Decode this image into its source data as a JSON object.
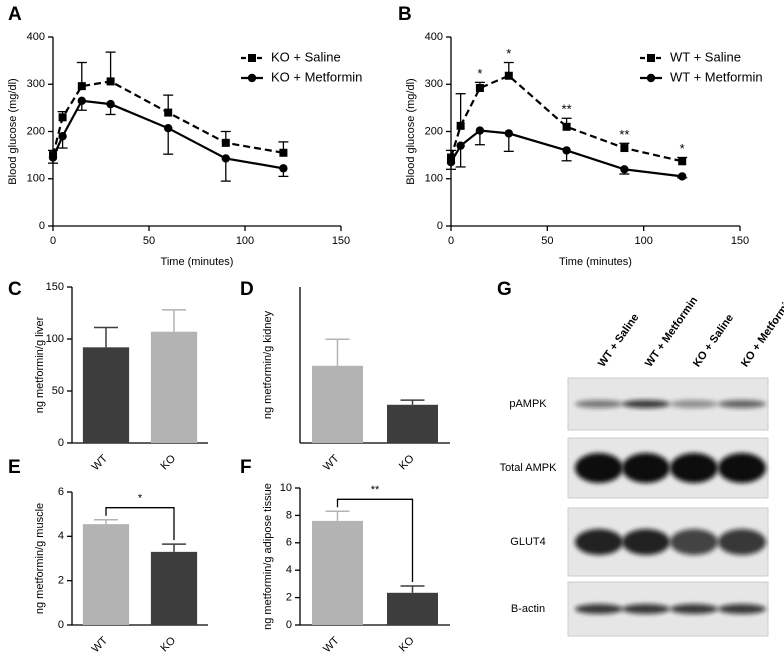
{
  "chart_data": [
    {
      "type": "line",
      "panel_label": "A",
      "x_label": "Time (minutes)",
      "y_label": "Blood glucose (mg/dl)",
      "x": [
        0,
        5,
        15,
        30,
        60,
        90,
        120
      ],
      "xlim": [
        0,
        150
      ],
      "xticks": [
        0,
        50,
        100,
        150
      ],
      "ylim": [
        0,
        400
      ],
      "yticks": [
        0,
        100,
        200,
        300,
        400
      ],
      "legend": "top-right",
      "series": [
        {
          "name": "KO + Saline",
          "color": "#000000",
          "dash": true,
          "marker": "square",
          "error_direction": "up",
          "values": [
            150,
            230,
            296,
            306,
            240,
            176,
            155
          ],
          "errors": [
            10,
            12,
            50,
            62,
            37,
            24,
            23
          ]
        },
        {
          "name": "KO + Metformin",
          "color": "#000000",
          "dash": false,
          "marker": "circle",
          "error_direction": "down",
          "values": [
            145,
            190,
            265,
            258,
            207,
            143,
            122
          ],
          "errors": [
            12,
            25,
            20,
            22,
            55,
            48,
            17
          ]
        }
      ]
    },
    {
      "type": "line",
      "panel_label": "B",
      "x_label": "Time (minutes)",
      "y_label": "Blood glucose (mg/dl)",
      "x": [
        0,
        5,
        15,
        30,
        60,
        90,
        120
      ],
      "xlim": [
        0,
        150
      ],
      "xticks": [
        0,
        50,
        100,
        150
      ],
      "ylim": [
        0,
        400
      ],
      "yticks": [
        0,
        100,
        200,
        300,
        400
      ],
      "legend": "top-right",
      "series": [
        {
          "name": "WT + Saline",
          "color": "#000000",
          "dash": true,
          "marker": "square",
          "error_direction": "up",
          "values": [
            145,
            212,
            292,
            318,
            210,
            165,
            137
          ],
          "errors": [
            15,
            68,
            12,
            28,
            18,
            10,
            8
          ]
        },
        {
          "name": "WT + Metformin",
          "color": "#000000",
          "dash": false,
          "marker": "circle",
          "error_direction": "down",
          "values": [
            135,
            170,
            202,
            196,
            160,
            120,
            105
          ],
          "errors": [
            15,
            45,
            30,
            38,
            22,
            10,
            3
          ]
        }
      ],
      "annotations": [
        {
          "x": 15,
          "text": "*"
        },
        {
          "x": 30,
          "text": "*"
        },
        {
          "x": 60,
          "text": "**"
        },
        {
          "x": 90,
          "text": "**"
        },
        {
          "x": 120,
          "text": "*"
        }
      ]
    },
    {
      "type": "bar",
      "panel_label": "C",
      "y_label": "ng metformin/g liver",
      "categories": [
        "WT",
        "KO"
      ],
      "values": [
        92,
        107
      ],
      "errors": [
        19,
        21
      ],
      "colors": [
        "#3d3d3d",
        "#b3b3b3"
      ],
      "ylim": [
        0,
        150
      ],
      "yticks": [
        0,
        50,
        100,
        150
      ]
    },
    {
      "type": "bar",
      "panel_label": "D",
      "y_label": "ng metformin/g kidney",
      "categories": [
        "WT",
        "KO"
      ],
      "values": [
        99,
        49
      ],
      "errors": [
        34,
        6
      ],
      "colors": [
        "#b3b3b3",
        "#3d3d3d"
      ],
      "ylim": [
        0,
        200
      ]
    },
    {
      "type": "bar",
      "panel_label": "E",
      "y_label": "ng metformin/g muscle",
      "categories": [
        "WT",
        "KO"
      ],
      "values": [
        4.55,
        3.3
      ],
      "errors": [
        0.2,
        0.35
      ],
      "colors": [
        "#b3b3b3",
        "#3d3d3d"
      ],
      "ylim": [
        0,
        6
      ],
      "yticks": [
        0,
        2,
        4,
        6
      ],
      "significance": "*"
    },
    {
      "type": "bar",
      "panel_label": "F",
      "y_label": "ng metformin/g adipose tissue",
      "categories": [
        "WT",
        "KO"
      ],
      "values": [
        7.6,
        2.35
      ],
      "errors": [
        0.7,
        0.5
      ],
      "colors": [
        "#b3b3b3",
        "#3d3d3d"
      ],
      "ylim": [
        0,
        10
      ],
      "yticks": [
        0,
        2,
        4,
        6,
        8,
        10
      ],
      "significance": "**"
    }
  ],
  "blot": {
    "panel_label": "G",
    "lanes": [
      "WT + Saline",
      "WT + Metformin",
      "KO + Saline",
      "KO + Metformin"
    ],
    "rows": [
      "pAMPK",
      "Total AMPK",
      "GLUT4",
      "B-actin"
    ]
  }
}
